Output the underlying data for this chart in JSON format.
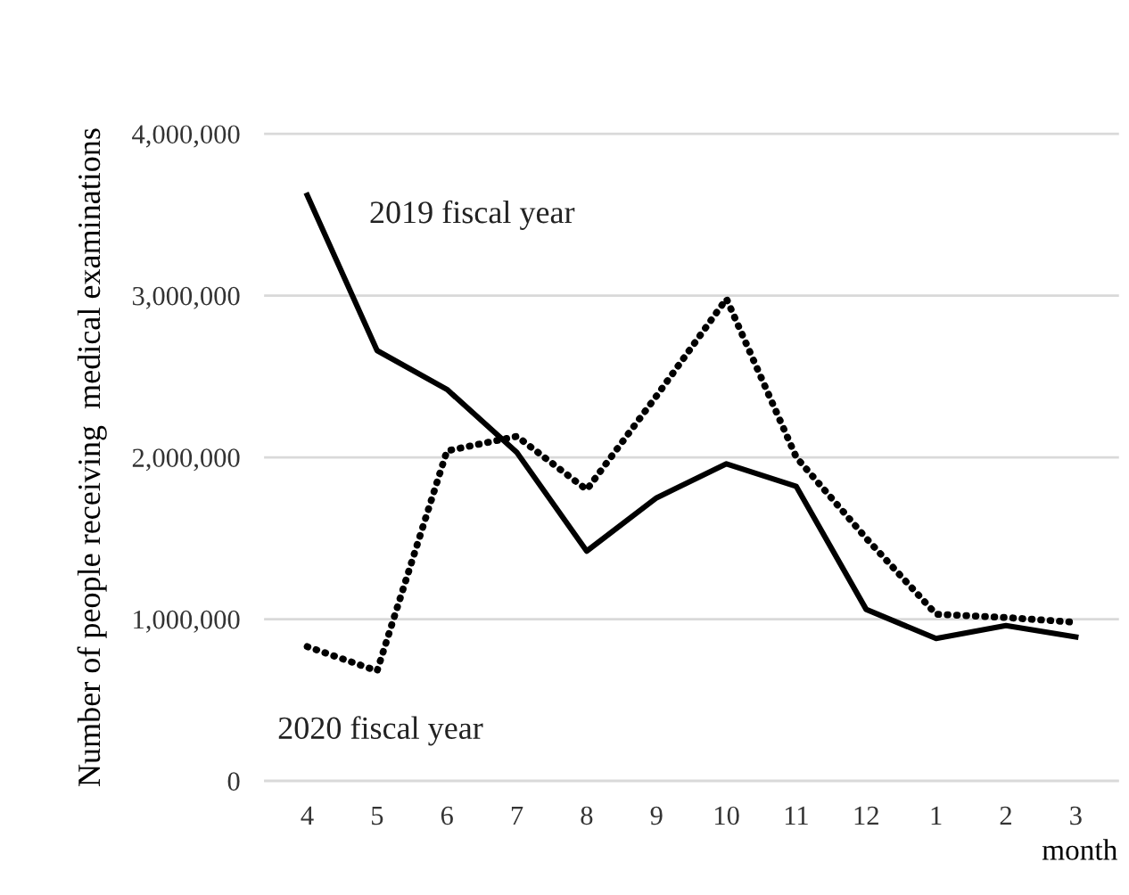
{
  "chart_data": {
    "type": "line",
    "xlabel": "month",
    "ylabel": "Number of people receiving  medical examinations",
    "categories": [
      "4",
      "5",
      "6",
      "7",
      "8",
      "9",
      "10",
      "11",
      "12",
      "1",
      "2",
      "3"
    ],
    "series": [
      {
        "name": "2019 fiscal year",
        "color": "#000000",
        "line_style": "solid",
        "values": [
          3620000,
          2660000,
          2420000,
          2030000,
          1420000,
          1750000,
          1960000,
          1820000,
          1060000,
          880000,
          960000,
          890000
        ]
      },
      {
        "name": "2020 fiscal year",
        "color": "#000000",
        "line_style": "dotted",
        "values": [
          830000,
          680000,
          2040000,
          2130000,
          1800000,
          2380000,
          2980000,
          2000000,
          1500000,
          1030000,
          1010000,
          980000
        ]
      }
    ],
    "ylim": [
      0,
      4000000
    ],
    "yticks": [
      {
        "value": 0,
        "label": "0"
      },
      {
        "value": 1000000,
        "label": "1,000,000"
      },
      {
        "value": 2000000,
        "label": "2,000,000"
      },
      {
        "value": 3000000,
        "label": "3,000,000"
      },
      {
        "value": 4000000,
        "label": "4,000,000"
      }
    ],
    "grid": "y",
    "legend": false,
    "marker": "none"
  }
}
